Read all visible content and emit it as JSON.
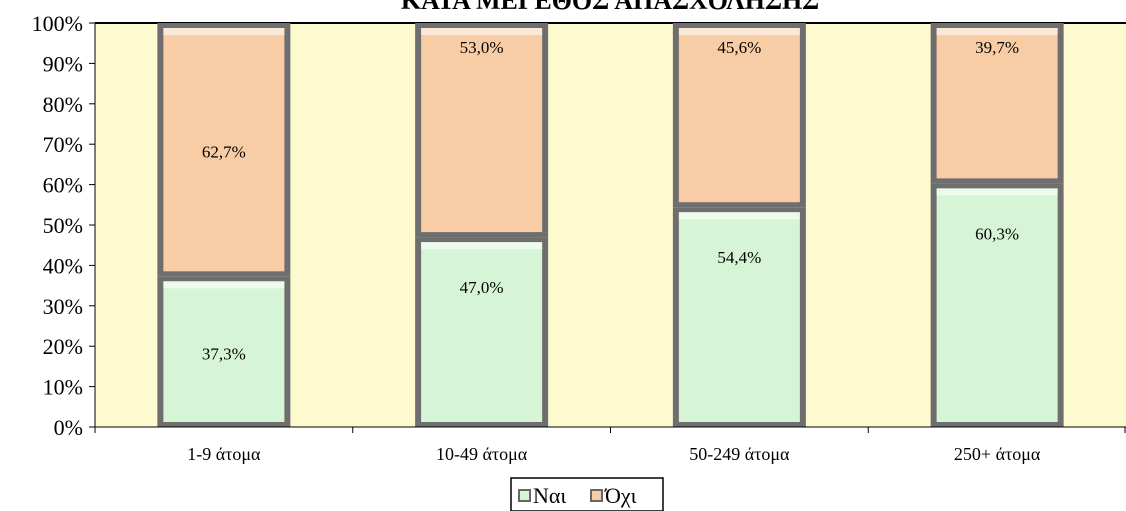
{
  "chart_data": {
    "type": "bar",
    "stacked": true,
    "title": "ΚΑΤΑ ΜΕΓΕΘΟΣ ΑΠΑΣΧΟΛΗΣΗΣ",
    "categories": [
      "1-9 άτομα",
      "10-49 άτομα",
      "50-249 άτομα",
      "250+ άτομα"
    ],
    "series": [
      {
        "name": "Ναι",
        "values": [
          37.3,
          47.0,
          54.4,
          60.3
        ],
        "labels": [
          "37,3%",
          "47,0%",
          "54,4%",
          "60,3%"
        ],
        "color": "#d6f5d6"
      },
      {
        "name": "Όχι",
        "values": [
          62.7,
          53.0,
          45.6,
          39.7
        ],
        "labels": [
          "62,7%",
          "53,0%",
          "45,6%",
          "39,7%"
        ],
        "color": "#f8cca5"
      }
    ],
    "ylim": [
      0,
      100
    ],
    "yticks": [
      "0%",
      "10%",
      "20%",
      "30%",
      "40%",
      "50%",
      "60%",
      "70%",
      "80%",
      "90%",
      "100%"
    ],
    "plot_background": "#fefad0",
    "legend": "bottom"
  }
}
